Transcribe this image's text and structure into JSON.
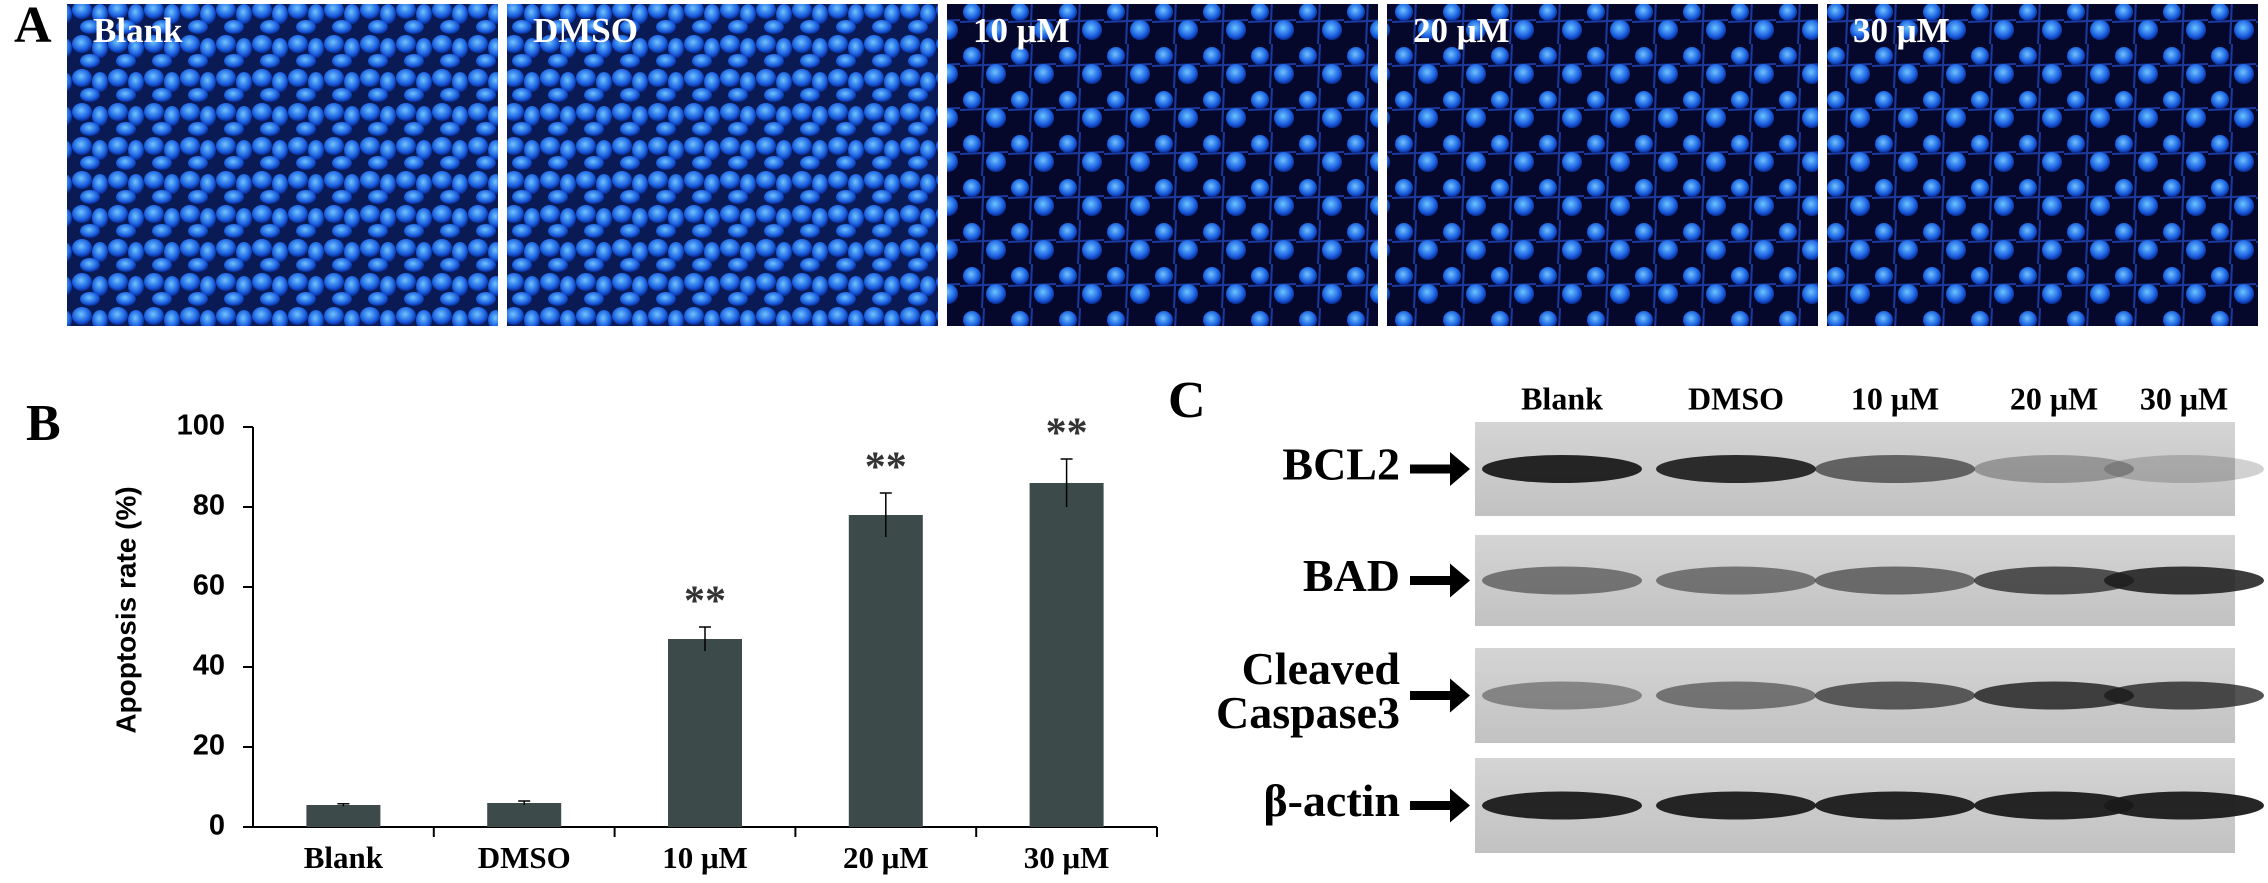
{
  "panel_a": {
    "label": "A",
    "images": [
      "Blank",
      "DMSO",
      "10 μM",
      "20 μM",
      "30 μM"
    ]
  },
  "chart_data": {
    "type": "bar",
    "label": "B",
    "y_label": "Apoptosis rate (%)",
    "categories": [
      "Blank",
      "DMSO",
      "10 μM",
      "20 μM",
      "30 μM"
    ],
    "values": [
      5.5,
      6,
      47,
      78,
      86
    ],
    "errors": [
      0.3,
      0.5,
      3,
      5.5,
      6
    ],
    "annotations": [
      null,
      null,
      "**",
      "**",
      "**"
    ],
    "color": "#3d4a4a",
    "ylim": [
      0,
      100
    ],
    "yticks": [
      0,
      20,
      40,
      60,
      80,
      100
    ]
  },
  "panel_c": {
    "label": "C",
    "lanes": [
      "Blank",
      "DMSO",
      "10 μM",
      "20 μM",
      "30 μM"
    ],
    "proteins": [
      [
        "BCL2"
      ],
      [
        "BAD"
      ],
      [
        "Cleaved",
        "Caspase3"
      ],
      [
        "β-actin"
      ]
    ]
  }
}
